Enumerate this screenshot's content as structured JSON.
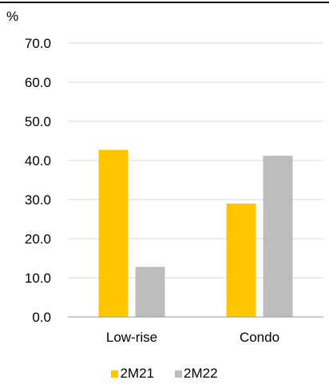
{
  "chart_data": {
    "type": "bar",
    "unit_label": "%",
    "categories": [
      "Low-rise",
      "Condo"
    ],
    "series": [
      {
        "name": "2M21",
        "color": "#FFC600",
        "values": [
          42.7,
          29.0
        ]
      },
      {
        "name": "2M22",
        "color": "#BDBDBD",
        "values": [
          12.8,
          41.2
        ]
      }
    ],
    "y_ticks": [
      "0.0",
      "10.0",
      "20.0",
      "30.0",
      "40.0",
      "50.0",
      "60.0",
      "70.0"
    ],
    "ylim": [
      0,
      70
    ],
    "grid": true,
    "legend_position": "bottom",
    "top_rule": true
  }
}
